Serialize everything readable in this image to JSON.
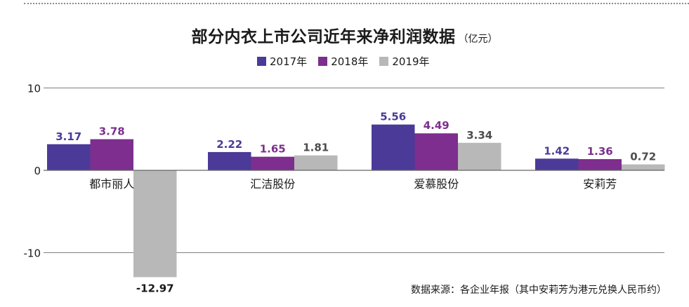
{
  "title": "部分内衣上市公司近年来净利润数据",
  "unit": "（亿元）",
  "source": "数据来源：各企业年报（其中安莉芳为港元兑换人民币约）",
  "colors": {
    "s2017": "#4b3a98",
    "s2018": "#7d2e8e",
    "s2019": "#b8b8b8",
    "axis": "#808080",
    "text": "#1a1a1a",
    "neg_label": "#1a1a1a"
  },
  "chart_data": {
    "type": "bar",
    "categories": [
      "都市丽人",
      "汇洁股份",
      "爱慕股份",
      "安莉芳"
    ],
    "series": [
      {
        "name": "2017年",
        "values": [
          3.17,
          2.22,
          5.56,
          1.42
        ],
        "labels": [
          "3.17",
          "2.22",
          "5.56",
          "1.42"
        ]
      },
      {
        "name": "2018年",
        "values": [
          3.78,
          1.65,
          4.49,
          1.36
        ],
        "labels": [
          "3.78",
          "1.65",
          "4.49",
          "1.36"
        ]
      },
      {
        "name": "2019年",
        "values": [
          -12.97,
          1.81,
          3.34,
          0.72
        ],
        "labels": [
          "-12.97",
          "1.81",
          "3.34",
          "0.72"
        ]
      }
    ],
    "yticks": [
      10,
      0,
      -10
    ],
    "ylim": [
      -13,
      10
    ],
    "grid": true,
    "legend": "top"
  }
}
